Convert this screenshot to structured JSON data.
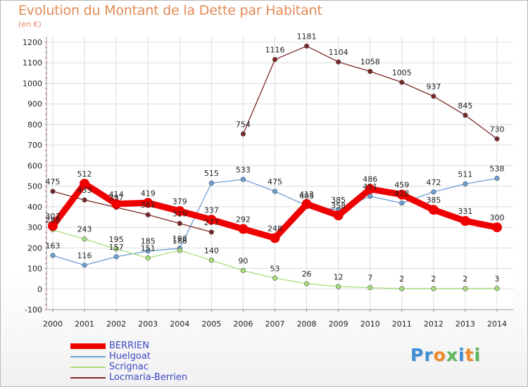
{
  "title": "Evolution du Montant de la Dette par Habitant",
  "unit": "(en €)",
  "logo": {
    "text": "Proxiti",
    "letters": [
      {
        "ch": "P",
        "color": "#3d8fd6"
      },
      {
        "ch": "r",
        "color": "#3d8fd6"
      },
      {
        "ch": "o",
        "color": "#ef8a2a"
      },
      {
        "ch": "x",
        "color": "#5cb85c"
      },
      {
        "ch": "i",
        "color": "#3d8fd6"
      },
      {
        "ch": "t",
        "color": "#ef8a2a"
      },
      {
        "ch": "i",
        "color": "#5cb85c"
      }
    ]
  },
  "chart_data": {
    "type": "line",
    "title": "Evolution du Montant de la Dette par Habitant",
    "ylabel": "(en €)",
    "xlabel": "",
    "x": [
      "2000",
      "2001",
      "2002",
      "2003",
      "2004",
      "2005",
      "2006",
      "2007",
      "2008",
      "2009",
      "2010",
      "2011",
      "2012",
      "2013",
      "2014"
    ],
    "ylim": [
      -100,
      1200
    ],
    "yticks": [
      -100,
      0,
      100,
      200,
      300,
      400,
      500,
      600,
      700,
      800,
      900,
      1000,
      1100,
      1200
    ],
    "grid": true,
    "legend": "bottom-left",
    "series": [
      {
        "name": "BERRIEN",
        "color": "#ee0000",
        "width": 9,
        "marker": 7,
        "values": [
          307,
          512,
          414,
          419,
          379,
          337,
          292,
          248,
          413,
          358,
          486,
          459,
          385,
          331,
          300
        ]
      },
      {
        "name": "Huelgoat",
        "color": "#6a9fd4",
        "width": 1.3,
        "marker": 3.3,
        "values": [
          163,
          116,
          157,
          185,
          198,
          515,
          533,
          475,
          405,
          385,
          451,
          418,
          472,
          511,
          538
        ]
      },
      {
        "name": "Scrignac",
        "color": "#a8dd7a",
        "width": 1.3,
        "marker": 3.3,
        "values": [
          288,
          243,
          195,
          151,
          188,
          140,
          90,
          53,
          26,
          12,
          7,
          2,
          2,
          2,
          3
        ]
      },
      {
        "name": "Locmaria-Berrien",
        "color": "#7b2626",
        "width": 1.3,
        "marker": 3.3,
        "values": [
          475,
          433,
          397,
          361,
          319,
          277,
          754,
          1116,
          1181,
          1104,
          1058,
          1005,
          937,
          845,
          730
        ],
        "breaks": [
          5
        ]
      }
    ]
  }
}
